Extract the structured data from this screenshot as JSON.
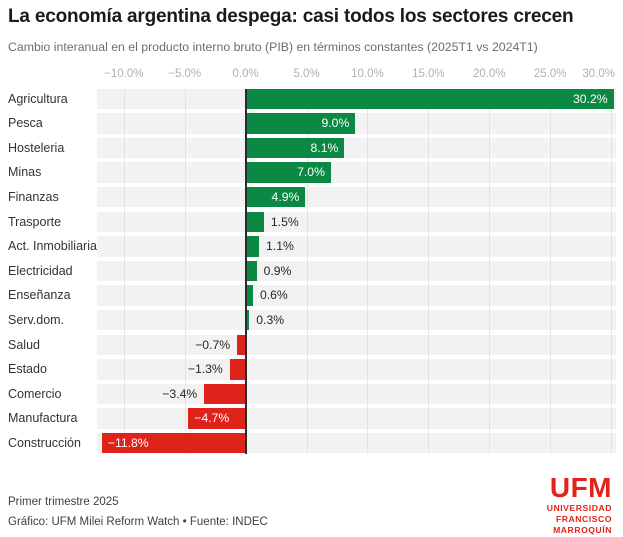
{
  "header": {
    "title": "La economía argentina despega: casi todos los sectores crecen",
    "subtitle": "Cambio interanual en el producto interno bruto (PIB) en términos constantes (2025T1 vs 2024T1)"
  },
  "chart_data": {
    "type": "bar",
    "orientation": "horizontal",
    "title": "La economía argentina despega: casi todos los sectores crecen",
    "subtitle": "Cambio interanual en el producto interno bruto (PIB) en términos constantes (2025T1 vs 2024T1)",
    "categories": [
      "Agricultura",
      "Pesca",
      "Hosteleria",
      "Minas",
      "Finanzas",
      "Trasporte",
      "Act. Inmobiliaria",
      "Electricidad",
      "Enseñanza",
      "Serv.dom.",
      "Salud",
      "Estado",
      "Comercio",
      "Manufactura",
      "Construcción"
    ],
    "values": [
      30.2,
      9.0,
      8.1,
      7.0,
      4.9,
      1.5,
      1.1,
      0.9,
      0.6,
      0.3,
      -0.7,
      -1.3,
      -3.4,
      -4.7,
      -11.8
    ],
    "value_labels": [
      "30.2%",
      "9.0%",
      "8.1%",
      "7.0%",
      "4.9%",
      "1.5%",
      "1.1%",
      "0.9%",
      "0.6%",
      "0.3%",
      "−0.7%",
      "−1.3%",
      "−3.4%",
      "−4.7%",
      "−11.8%"
    ],
    "x_ticks": [
      -10,
      -5,
      0,
      5,
      10,
      15,
      20,
      25,
      30
    ],
    "x_tick_labels": [
      "−10.0%",
      "−5.0%",
      "0.0%",
      "5.0%",
      "10.0%",
      "15.0%",
      "20.0%",
      "25.0%",
      "30.0%"
    ],
    "xlim": [
      -12.2,
      30.4
    ],
    "grid": true,
    "legend": "none",
    "positive_color": "#0b8843",
    "negative_color": "#df231b",
    "row_band_color": "#f2f2f2",
    "zero_line_color": "#2b2b2b"
  },
  "footer": {
    "note": "Primer trimestre 2025",
    "credit": "Gráfico: UFM Milei Reform Watch • Fuente: INDEC"
  },
  "logo": {
    "acronym": "UFM",
    "line1": "UNIVERSIDAD",
    "line2": "FRANCISCO",
    "line3": "MARROQUÍN",
    "color": "#e3231a"
  }
}
